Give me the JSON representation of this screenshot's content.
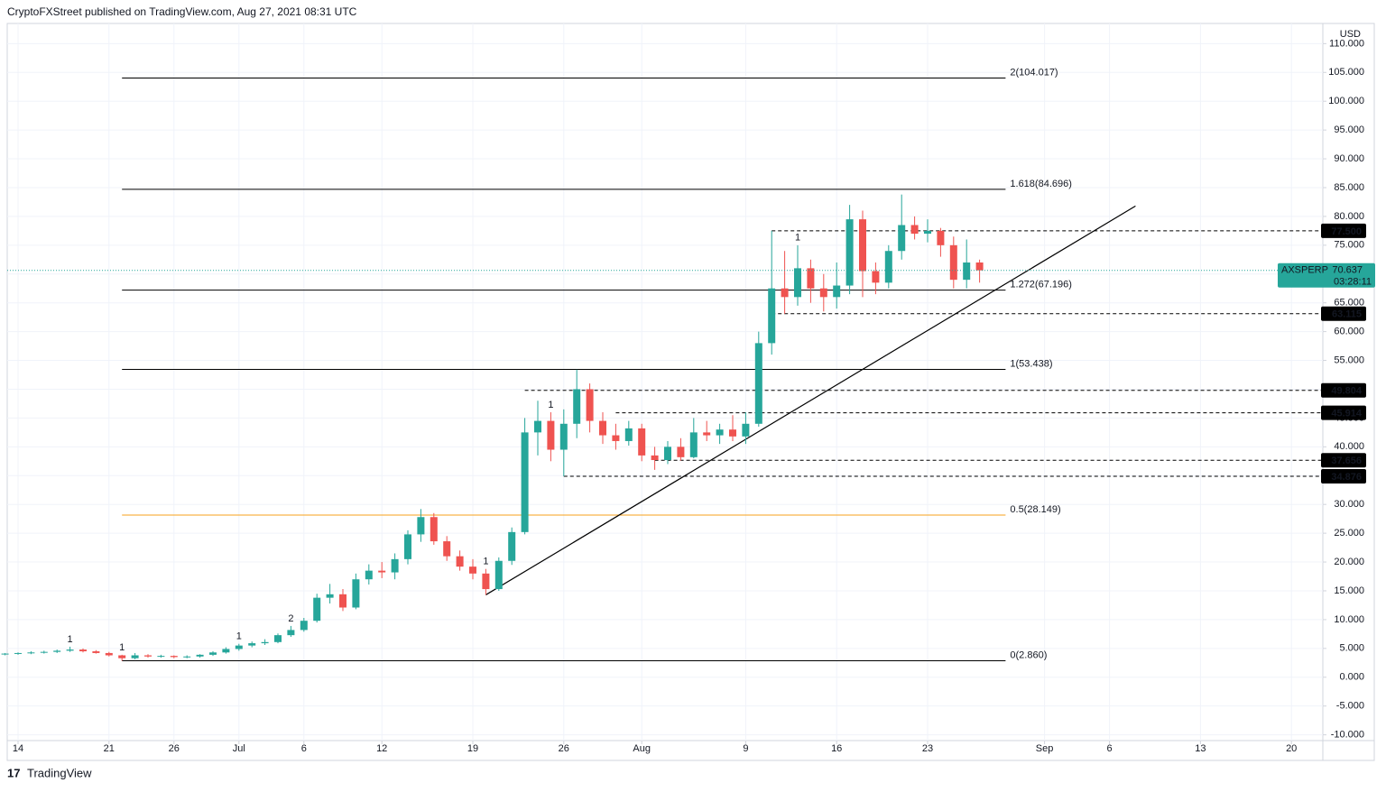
{
  "header": "CryptoFXStreet published on TradingView.com, Aug 27, 2021 08:31 UTC",
  "footer": "TradingView",
  "chart_data": {
    "type": "candlestick",
    "currency": "USD",
    "up_color": "#26a69a",
    "down_color": "#ef5350",
    "grid": true,
    "x": [
      "2021-06-13",
      "2021-06-14",
      "2021-06-15",
      "2021-06-16",
      "2021-06-17",
      "2021-06-18",
      "2021-06-19",
      "2021-06-20",
      "2021-06-21",
      "2021-06-22",
      "2021-06-23",
      "2021-06-24",
      "2021-06-25",
      "2021-06-26",
      "2021-06-27",
      "2021-06-28",
      "2021-06-29",
      "2021-06-30",
      "2021-07-01",
      "2021-07-02",
      "2021-07-03",
      "2021-07-04",
      "2021-07-05",
      "2021-07-06",
      "2021-07-07",
      "2021-07-08",
      "2021-07-09",
      "2021-07-10",
      "2021-07-11",
      "2021-07-12",
      "2021-07-13",
      "2021-07-14",
      "2021-07-15",
      "2021-07-16",
      "2021-07-17",
      "2021-07-18",
      "2021-07-19",
      "2021-07-20",
      "2021-07-21",
      "2021-07-22",
      "2021-07-23",
      "2021-07-24",
      "2021-07-25",
      "2021-07-26",
      "2021-07-27",
      "2021-07-28",
      "2021-07-29",
      "2021-07-30",
      "2021-07-31",
      "2021-08-01",
      "2021-08-02",
      "2021-08-03",
      "2021-08-04",
      "2021-08-05",
      "2021-08-06",
      "2021-08-07",
      "2021-08-08",
      "2021-08-09",
      "2021-08-10",
      "2021-08-11",
      "2021-08-12",
      "2021-08-13",
      "2021-08-14",
      "2021-08-15",
      "2021-08-16",
      "2021-08-17",
      "2021-08-18",
      "2021-08-19",
      "2021-08-20",
      "2021-08-21",
      "2021-08-22",
      "2021-08-23",
      "2021-08-24",
      "2021-08-25",
      "2021-08-26",
      "2021-08-27"
    ],
    "series": [
      {
        "name": "AXSPERP",
        "open": [
          4.0,
          4.1,
          4.2,
          4.3,
          4.4,
          4.6,
          4.8,
          4.5,
          4.2,
          3.8,
          3.3,
          3.8,
          3.6,
          3.7,
          3.5,
          3.6,
          3.9,
          4.3,
          4.9,
          5.5,
          5.9,
          6.1,
          7.3,
          8.2,
          9.8,
          13.8,
          14.4,
          12.1,
          17.0,
          18.5,
          18.2,
          20.5,
          24.8,
          27.8,
          23.6,
          21.0,
          19.2,
          18.0,
          15.3,
          20.2,
          25.2,
          42.5,
          44.5,
          39.5,
          44.0,
          50.0,
          44.5,
          42.0,
          41.0,
          43.2,
          38.5,
          37.7,
          40.0,
          38.2,
          42.5,
          42.0,
          43.0,
          41.8,
          44.0,
          58.0,
          67.5,
          66.0,
          71.0,
          67.5,
          66.0,
          68.0,
          79.5,
          70.5,
          68.5,
          74.0,
          78.5,
          77.0,
          77.5,
          75.0,
          69.0,
          72.0
        ],
        "high": [
          4.2,
          4.3,
          4.5,
          4.6,
          4.8,
          5.3,
          5.0,
          4.7,
          4.4,
          3.9,
          4.2,
          4.0,
          3.9,
          3.8,
          3.8,
          4.0,
          4.5,
          5.2,
          5.8,
          6.2,
          6.6,
          7.6,
          8.9,
          10.3,
          14.5,
          16.2,
          15.3,
          18.0,
          19.6,
          20.0,
          21.5,
          25.5,
          29.2,
          28.5,
          24.5,
          22.0,
          20.5,
          18.8,
          20.8,
          26.0,
          45.0,
          48.0,
          46.0,
          46.5,
          53.4,
          51.0,
          46.0,
          44.0,
          44.5,
          44.0,
          40.0,
          41.0,
          41.5,
          45.0,
          44.5,
          44.0,
          45.5,
          46.0,
          60.0,
          77.5,
          74.0,
          75.0,
          72.5,
          70.0,
          72.0,
          82.0,
          81.0,
          72.0,
          75.0,
          83.8,
          80.0,
          79.5,
          78.0,
          76.5,
          76.0,
          72.5
        ],
        "low": [
          3.8,
          3.9,
          4.0,
          4.1,
          4.2,
          4.4,
          4.3,
          4.1,
          3.6,
          2.86,
          3.1,
          3.4,
          3.4,
          3.3,
          3.3,
          3.4,
          3.7,
          4.1,
          4.6,
          5.2,
          5.6,
          5.9,
          7.0,
          7.9,
          9.5,
          12.8,
          11.5,
          11.8,
          16.1,
          17.2,
          17.0,
          19.6,
          23.5,
          23.0,
          20.2,
          18.5,
          17.0,
          14.3,
          15.0,
          19.5,
          24.8,
          38.5,
          37.5,
          34.876,
          41.5,
          42.5,
          40.5,
          39.5,
          40.2,
          37.5,
          36.0,
          37.0,
          37.6,
          38.0,
          41.0,
          40.5,
          41.0,
          40.5,
          43.5,
          56.0,
          63.1,
          64.5,
          65.0,
          63.5,
          64.0,
          66.5,
          66.0,
          66.5,
          67.5,
          72.5,
          76.0,
          75.5,
          73.0,
          67.5,
          67.5,
          68.5
        ],
        "close": [
          4.1,
          4.2,
          4.3,
          4.4,
          4.6,
          4.8,
          4.5,
          4.2,
          3.8,
          3.3,
          3.8,
          3.6,
          3.7,
          3.5,
          3.6,
          3.9,
          4.3,
          4.9,
          5.5,
          5.9,
          6.1,
          7.3,
          8.2,
          9.8,
          13.8,
          14.4,
          12.1,
          17.0,
          18.5,
          18.2,
          20.5,
          24.8,
          27.8,
          23.6,
          21.0,
          19.2,
          18.0,
          15.3,
          20.2,
          25.2,
          42.5,
          44.5,
          39.5,
          44.0,
          50.0,
          44.5,
          42.0,
          41.0,
          43.2,
          38.5,
          37.7,
          40.0,
          38.2,
          42.5,
          42.0,
          43.0,
          41.8,
          44.0,
          58.0,
          67.5,
          66.0,
          71.0,
          67.5,
          66.0,
          68.0,
          79.5,
          70.5,
          68.5,
          74.0,
          78.5,
          77.0,
          77.5,
          75.0,
          69.0,
          72.0,
          70.637
        ],
        "countdown": "03:28:11"
      }
    ],
    "ylim": [
      -11,
      113.5
    ],
    "yticks": [
      {
        "value": -10,
        "label": "-10.000"
      },
      {
        "value": -5,
        "label": "-5.000"
      },
      {
        "value": 0,
        "label": "0.000"
      },
      {
        "value": 5,
        "label": "5.000"
      },
      {
        "value": 10,
        "label": "10.000"
      },
      {
        "value": 15,
        "label": "15.000"
      },
      {
        "value": 20,
        "label": "20.000"
      },
      {
        "value": 25,
        "label": "25.000"
      },
      {
        "value": 30,
        "label": "30.000"
      },
      {
        "value": 35,
        "label": "35.000"
      },
      {
        "value": 40,
        "label": "40.000"
      },
      {
        "value": 45,
        "label": "45.000"
      },
      {
        "value": 50,
        "label": "50.000"
      },
      {
        "value": 55,
        "label": "55.000"
      },
      {
        "value": 60,
        "label": "60.000"
      },
      {
        "value": 65,
        "label": "65.000"
      },
      {
        "value": 70,
        "label": "70.000"
      },
      {
        "value": 75,
        "label": "75.000"
      },
      {
        "value": 80,
        "label": "80.000"
      },
      {
        "value": 85,
        "label": "85.000"
      },
      {
        "value": 90,
        "label": "90.000"
      },
      {
        "value": 95,
        "label": "95.000"
      },
      {
        "value": 100,
        "label": "100.000"
      },
      {
        "value": 105,
        "label": "105.000"
      },
      {
        "value": 110,
        "label": "110.000"
      }
    ],
    "xticks": [
      {
        "value": "2021-06-14",
        "label": "14"
      },
      {
        "value": "2021-06-21",
        "label": "21"
      },
      {
        "value": "2021-06-26",
        "label": "26"
      },
      {
        "value": "2021-07-01",
        "label": "Jul"
      },
      {
        "value": "2021-07-06",
        "label": "6"
      },
      {
        "value": "2021-07-12",
        "label": "12"
      },
      {
        "value": "2021-07-19",
        "label": "19"
      },
      {
        "value": "2021-07-26",
        "label": "26"
      },
      {
        "value": "2021-08-01",
        "label": "Aug"
      },
      {
        "value": "2021-08-09",
        "label": "9"
      },
      {
        "value": "2021-08-16",
        "label": "16"
      },
      {
        "value": "2021-08-23",
        "label": "23"
      },
      {
        "value": "2021-09-01",
        "label": "Sep"
      },
      {
        "value": "2021-09-06",
        "label": "6"
      },
      {
        "value": "2021-09-13",
        "label": "13"
      },
      {
        "value": "2021-09-20",
        "label": "20"
      }
    ],
    "fib_levels": [
      {
        "value": 104.017,
        "label": "2(104.017)",
        "from": "2021-06-22",
        "to": "2021-08-29",
        "color": "#000000"
      },
      {
        "value": 84.696,
        "label": "1.618(84.696)",
        "from": "2021-06-22",
        "to": "2021-08-29",
        "color": "#000000"
      },
      {
        "value": 67.196,
        "label": "1.272(67.196)",
        "from": "2021-06-22",
        "to": "2021-08-29",
        "color": "#000000"
      },
      {
        "value": 53.438,
        "label": "1(53.438)",
        "from": "2021-06-22",
        "to": "2021-08-29",
        "color": "#000000"
      },
      {
        "value": 28.149,
        "label": "0.5(28.149)",
        "from": "2021-06-22",
        "to": "2021-08-29",
        "color": "#f7a21b"
      },
      {
        "value": 2.86,
        "label": "0(2.860)",
        "from": "2021-06-22",
        "to": "2021-08-29",
        "color": "#000000"
      }
    ],
    "levels": [
      {
        "value": 77.5,
        "label": "77.500",
        "from": "2021-08-11"
      },
      {
        "value": 63.115,
        "label": "63.115",
        "from": "2021-08-11"
      },
      {
        "value": 49.804,
        "label": "49.804",
        "from": "2021-07-23"
      },
      {
        "value": 45.914,
        "label": "45.914",
        "from": "2021-07-30"
      },
      {
        "value": 37.656,
        "label": "37.656",
        "from": "2021-08-02"
      },
      {
        "value": 34.876,
        "label": "34.876",
        "from": "2021-07-26"
      }
    ],
    "trendline": [
      {
        "x": "2021-07-20",
        "value": 14.3
      },
      {
        "x": "2021-09-08",
        "value": 81.8
      }
    ],
    "markers": [
      {
        "x": "2021-06-18",
        "text": "1",
        "color": "#ef5350"
      },
      {
        "x": "2021-06-22",
        "text": "1",
        "color": "#26a69a"
      },
      {
        "x": "2021-07-01",
        "text": "1",
        "color": "#ef5350"
      },
      {
        "x": "2021-07-05",
        "text": "2",
        "color": "#ef5350"
      },
      {
        "x": "2021-07-20",
        "text": "1",
        "color": "#26a69a"
      },
      {
        "x": "2021-07-25",
        "text": "1",
        "color": "#ef5350"
      },
      {
        "x": "2021-08-13",
        "text": "1",
        "color": "#ef5350"
      }
    ]
  }
}
